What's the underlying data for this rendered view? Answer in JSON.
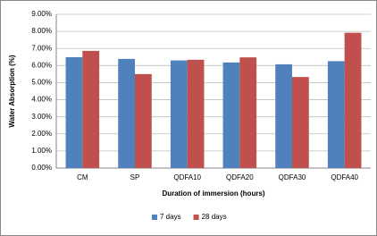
{
  "chart_data": {
    "type": "bar",
    "x_label": "Duration of immersion (hours)",
    "y_label": "Water Absorption (%)",
    "categories": [
      "CM",
      "SP",
      "QDFA10",
      "QDFA20",
      "QDFA30",
      "QDFA40"
    ],
    "series": [
      {
        "name": "7 days",
        "color": "#4f81bd",
        "values": [
          6.49,
          6.39,
          6.3,
          6.18,
          6.07,
          6.26
        ]
      },
      {
        "name": "28 days",
        "color": "#c0504d",
        "values": [
          6.86,
          5.5,
          6.34,
          6.48,
          5.33,
          7.92
        ]
      }
    ],
    "ylim": [
      0,
      9
    ],
    "yticks": [
      {
        "value": 0,
        "label": "0.00%"
      },
      {
        "value": 1,
        "label": "1.00%"
      },
      {
        "value": 2,
        "label": "2.00%"
      },
      {
        "value": 3,
        "label": "3.00%"
      },
      {
        "value": 4,
        "label": "4.00%"
      },
      {
        "value": 5,
        "label": "5.00%"
      },
      {
        "value": 6,
        "label": "6.00%"
      },
      {
        "value": 7,
        "label": "7.00%"
      },
      {
        "value": 8,
        "label": "8.00%"
      },
      {
        "value": 9,
        "label": "9.00%"
      }
    ],
    "grid": true,
    "legend": "bottom"
  }
}
